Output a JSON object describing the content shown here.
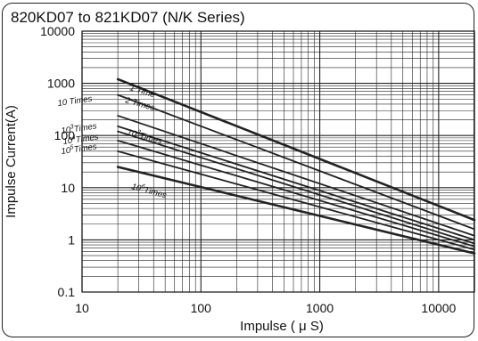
{
  "title": "820KD07 to 821KD07 (N/K Series)",
  "chart_data": {
    "type": "line",
    "x_scale": "log",
    "y_scale": "log",
    "xlim": [
      10,
      20000
    ],
    "ylim": [
      0.1,
      10000
    ],
    "xlabel": "Impulse ( μ S)",
    "ylabel": "Impulse Current(A)",
    "x_tick_labels": [
      "10",
      "100",
      "1000",
      "10000"
    ],
    "y_tick_labels": [
      "10000",
      "1000",
      "100",
      "10",
      "1",
      "0.1"
    ],
    "grid": true,
    "series": [
      {
        "name": "1 Time",
        "label_parts": [
          "1 Time"
        ],
        "x": [
          20,
          20000
        ],
        "y": [
          1200,
          2.4
        ]
      },
      {
        "name": "2 Times",
        "label_parts": [
          "2 Times"
        ],
        "x": [
          20,
          20000
        ],
        "y": [
          600,
          1.6
        ]
      },
      {
        "name": "10^2 Times",
        "label_parts": [
          "10",
          "2",
          "Times"
        ],
        "x": [
          20,
          20000
        ],
        "y": [
          240,
          1.2
        ]
      },
      {
        "name": "10^3 Times",
        "label_parts": [
          "10",
          "3",
          "Times"
        ],
        "x": [
          20,
          20000
        ],
        "y": [
          150,
          1.0
        ]
      },
      {
        "name": "10 Times",
        "label_parts": [
          "10",
          "",
          "Times"
        ],
        "x": [
          20,
          20000
        ],
        "y": [
          120,
          0.85
        ]
      },
      {
        "name": "10^4 Times",
        "label_parts": [
          "10",
          "4",
          "Times"
        ],
        "x": [
          20,
          20000
        ],
        "y": [
          80,
          0.75
        ]
      },
      {
        "name": "10^5 Times",
        "label_parts": [
          "10",
          "5",
          "Times"
        ],
        "x": [
          20,
          20000
        ],
        "y": [
          50,
          0.65
        ]
      },
      {
        "name": "10^6 Times",
        "label_parts": [
          "10",
          "6",
          "Times"
        ],
        "x": [
          20,
          20000
        ],
        "y": [
          25,
          0.55
        ]
      }
    ]
  }
}
